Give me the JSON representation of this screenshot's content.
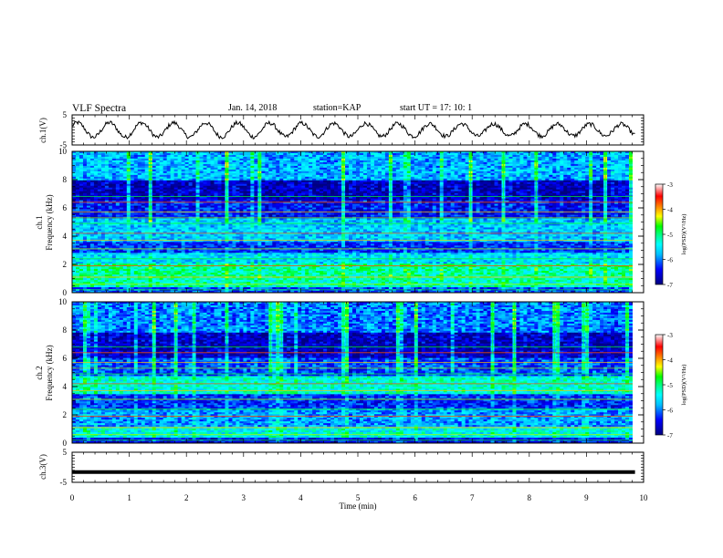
{
  "header": {
    "title": "VLF Spectra",
    "date": "Jan. 14, 2018",
    "station": "station=KAP",
    "start_ut": "start UT =  17: 10: 1"
  },
  "chart_data": [
    {
      "type": "line",
      "panel": "ch1-waveform",
      "ylabel": "ch.1(V)",
      "ylim": [
        -5,
        5
      ],
      "yticks": [
        "5",
        "-5"
      ],
      "xlim": [
        0,
        10
      ],
      "description_values": {
        "dominant_period_min": 0.56,
        "approx_amplitude_v": 2.2,
        "noise_amplitude_v": 0.7
      }
    },
    {
      "type": "heatmap",
      "panel": "ch1-spectrogram",
      "ylabel": "ch.1\nFrequency (kHz)",
      "ylim": [
        0,
        10
      ],
      "yticks": [
        "0",
        "2",
        "4",
        "6",
        "8",
        "10"
      ],
      "xlim": [
        0,
        9.85
      ],
      "bands_khz": [
        {
          "lo": 0.0,
          "hi": 0.4,
          "level": -6.2
        },
        {
          "lo": 0.4,
          "hi": 1.0,
          "level": -5.2
        },
        {
          "lo": 1.0,
          "hi": 2.0,
          "level": -5.1
        },
        {
          "lo": 2.0,
          "hi": 2.8,
          "level": -5.6
        },
        {
          "lo": 2.8,
          "hi": 3.6,
          "level": -6.3
        },
        {
          "lo": 3.6,
          "hi": 5.2,
          "level": -5.7
        },
        {
          "lo": 5.2,
          "hi": 6.6,
          "level": -6.4
        },
        {
          "lo": 6.6,
          "hi": 8.0,
          "level": -6.7
        },
        {
          "lo": 8.0,
          "hi": 10.0,
          "level": -5.8
        }
      ],
      "colorbar": {
        "label": "log(PSD)(V²/Hz)",
        "min": -7,
        "max": -3,
        "ticks": [
          "-3",
          "-4",
          "-5",
          "-6",
          "-7"
        ]
      }
    },
    {
      "type": "heatmap",
      "panel": "ch2-spectrogram",
      "ylabel": "ch.2\nFrequency (kHz)",
      "ylim": [
        0,
        10
      ],
      "yticks": [
        "0",
        "2",
        "4",
        "6",
        "8",
        "10"
      ],
      "xlim": [
        0,
        9.85
      ],
      "bands_khz": [
        {
          "lo": 0.0,
          "hi": 0.4,
          "level": -6.5
        },
        {
          "lo": 0.4,
          "hi": 1.2,
          "level": -5.4
        },
        {
          "lo": 1.2,
          "hi": 2.4,
          "level": -5.9
        },
        {
          "lo": 2.4,
          "hi": 3.4,
          "level": -6.3
        },
        {
          "lo": 3.4,
          "hi": 4.8,
          "level": -5.3
        },
        {
          "lo": 4.8,
          "hi": 6.0,
          "level": -6.2
        },
        {
          "lo": 6.0,
          "hi": 7.8,
          "level": -6.7
        },
        {
          "lo": 7.8,
          "hi": 10.0,
          "level": -6.0
        }
      ],
      "colorbar": {
        "label": "log(PSD)(V²/Hz)",
        "min": -7,
        "max": -3,
        "ticks": [
          "-3",
          "-4",
          "-5",
          "-6",
          "-7"
        ]
      }
    },
    {
      "type": "line",
      "panel": "ch3-waveform",
      "ylabel": "ch.3(V)",
      "ylim": [
        -5,
        5
      ],
      "yticks": [
        "5",
        "-5"
      ],
      "xlim": [
        0,
        10
      ],
      "constant_value_v": -1.6,
      "xlabel": "Time (min)",
      "xticks": [
        "0",
        "1",
        "2",
        "3",
        "4",
        "5",
        "6",
        "7",
        "8",
        "9",
        "10"
      ]
    }
  ],
  "colors": {
    "colormap": [
      "#000080",
      "#0000ff",
      "#00bfff",
      "#00ffff",
      "#00ff7f",
      "#00ff00",
      "#ffff00",
      "#ff8000",
      "#ff0000",
      "#ffffff"
    ],
    "axis": "#000000",
    "trace": "#000000"
  }
}
